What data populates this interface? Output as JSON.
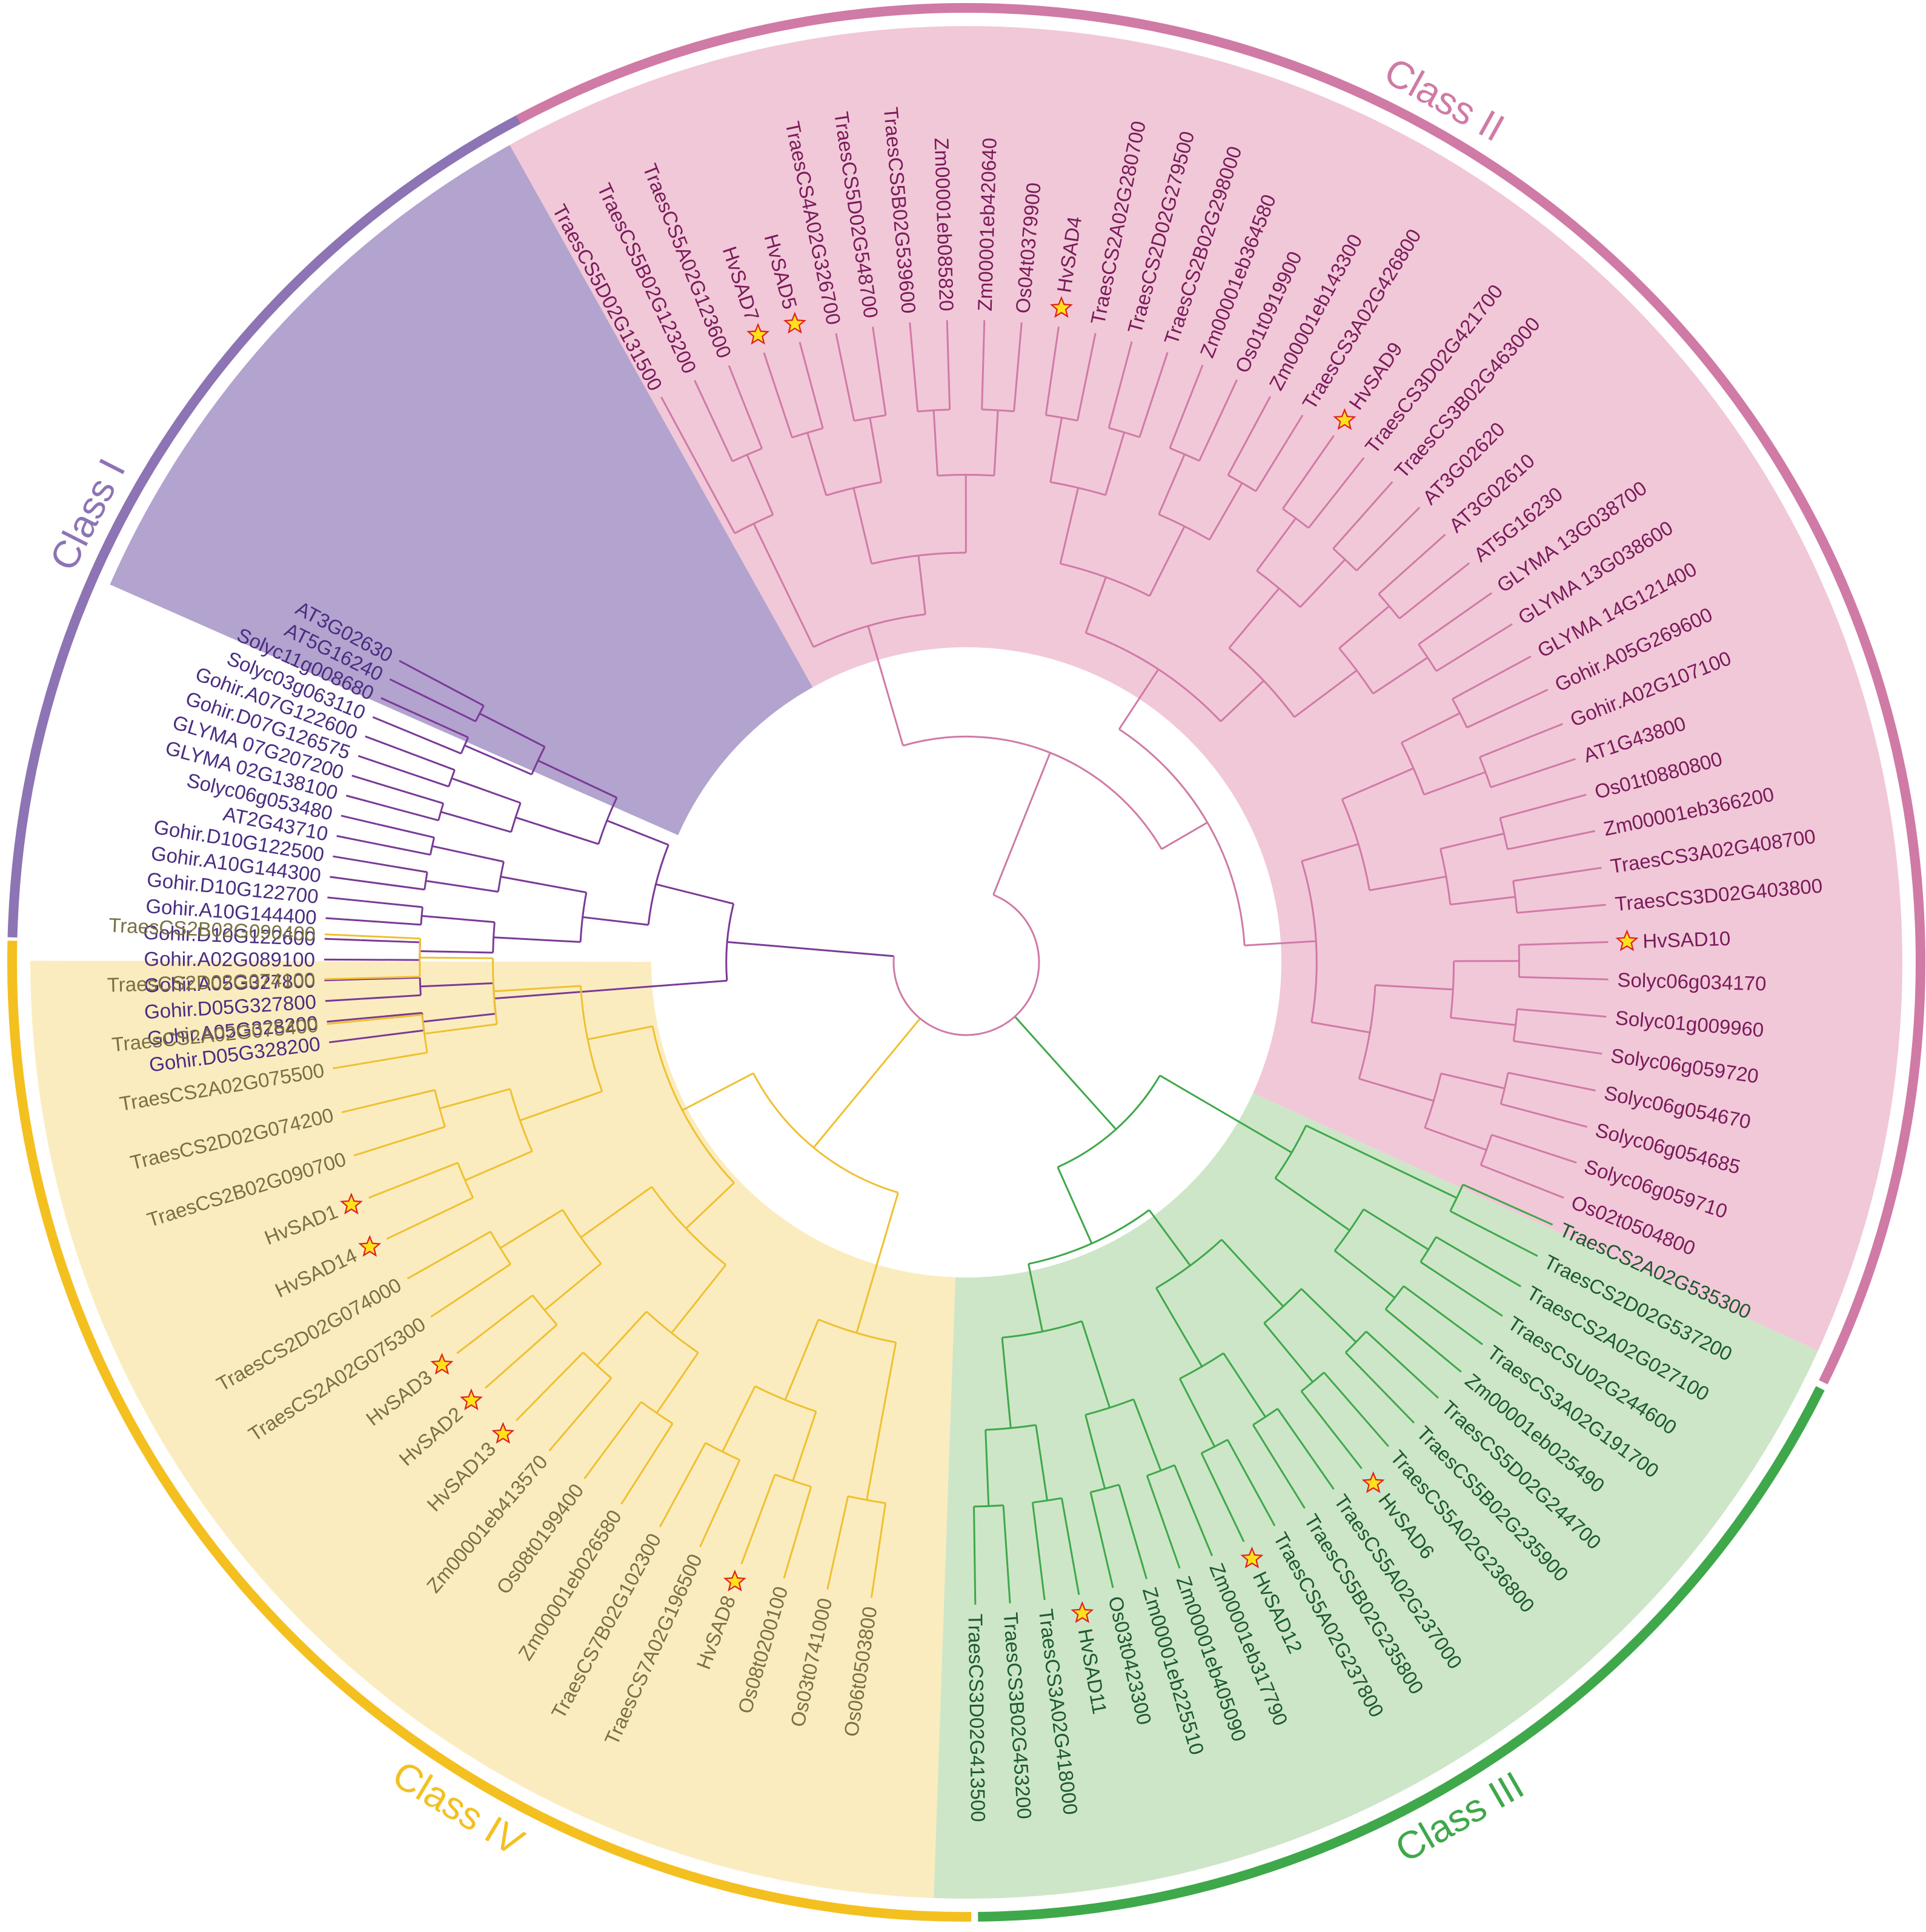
{
  "classes": [
    {
      "id": "I",
      "label": "Class I",
      "color": "#8d74b4",
      "fill": "#b3a3cf",
      "text": "#4a2d80",
      "branch": "#7a3a96",
      "leaves": [
        "AT3G02630",
        "AT5G16240",
        "Solyc11g008680",
        "Solyc03g063110",
        "Gohir.A07G122600",
        "Gohir.D07G126575",
        "GLYMA 07G207200",
        "GLYMA 02G138100",
        "Solyc06g053480",
        "AT2G43710",
        "Gohir.D10G122500",
        "Gohir.A10G144300",
        "Gohir.D10G122700",
        "Gohir.A10G144400",
        "Gohir.D10G122600",
        "Gohir.A02G089100",
        "Gohir.A05G327800",
        "Gohir.D05G327800",
        "Gohir.A05G328200",
        "Gohir.D05G328200"
      ]
    },
    {
      "id": "IV",
      "label": "Class IV",
      "color": "#f4c020",
      "fill": "#fbecc0",
      "text": "#7a7040",
      "branch": "#f0c030",
      "leaves": [
        "TraesCS2B02G090400",
        "TraesCS2D02G074100",
        "TraesCS2A02G075400",
        "TraesCS2A02G075500",
        "TraesCS2D02G074200",
        "TraesCS2B02G090700",
        "HvSAD1",
        "HvSAD14",
        "TraesCS2D02G074000",
        "TraesCS2A02G075300",
        "HvSAD3",
        "HvSAD2",
        "HvSAD13",
        "Zm00001eb413570",
        "Os08t0199400",
        "Zm00001eb026580",
        "TraesCS7B02G102300",
        "TraesCS7A02G196500",
        "HvSAD8",
        "Os08t0200100",
        "Os03t0741000",
        "Os06t0503800"
      ]
    },
    {
      "id": "III",
      "label": "Class III",
      "color": "#3fa84a",
      "fill": "#cde6c8",
      "text": "#1c5a2c",
      "branch": "#3fa84a",
      "leaves": [
        "TraesCS3D02G413500",
        "TraesCS3B02G453200",
        "TraesCS3A02G418000",
        "HvSAD11",
        "Os03t0423300",
        "Zm00001eb225510",
        "Zm00001eb405090",
        "Zm00001eb317790",
        "HvSAD12",
        "TraesCS5A02G237800",
        "TraesCS5B02G235800",
        "TraesCS5A02G237000",
        "HvSAD6",
        "TraesCS5A02G236800",
        "TraesCS5B02G235900",
        "TraesCS5D02G244700",
        "Zm00001eb025490",
        "TraesCS3A02G191700",
        "TraesCSU02G244600",
        "TraesCS2A02G027100",
        "TraesCS2D02G537200",
        "TraesCS2A02G535300"
      ]
    },
    {
      "id": "II",
      "label": "Class II",
      "color": "#d07aa6",
      "fill": "#f1c8d8",
      "text": "#7a1a5a",
      "branch": "#d07aa6",
      "leaves": [
        "Os02t0504800",
        "Solyc06g059710",
        "Solyc06g054685",
        "Solyc06g054670",
        "Solyc06g059720",
        "Solyc01g009960",
        "Solyc06g034170",
        "HvSAD10",
        "TraesCS3D02G403800",
        "TraesCS3A02G408700",
        "Zm00001eb366200",
        "Os01t0880800",
        "AT1G43800",
        "Gohir.A02G107100",
        "Gohir.A05G269600",
        "GLYMA 14G121400",
        "GLYMA 13G038600",
        "GLYMA 13G038700",
        "AT5G16230",
        "AT3G02610",
        "AT3G02620",
        "TraesCS3B02G463000",
        "TraesCS3D02G421700",
        "HvSAD9",
        "TraesCS3A02G426800",
        "Zm00001eb143300",
        "Os01t0919900",
        "Zm00001eb364580",
        "TraesCS2B02G298000",
        "TraesCS2D02G279500",
        "TraesCS2A02G280700",
        "HvSAD4",
        "Os04t0379900",
        "Zm00001eb420640",
        "Zm00001eb085820",
        "TraesCS5B02G539600",
        "TraesCS5D02G548700",
        "TraesCS4A02G326700",
        "HvSAD5",
        "HvSAD7",
        "TraesCS5A02G123600",
        "TraesCS5B02G123200",
        "TraesCS5D02G131500"
      ]
    }
  ],
  "star_leaves": [
    "HvSAD1",
    "HvSAD2",
    "HvSAD3",
    "HvSAD4",
    "HvSAD5",
    "HvSAD6",
    "HvSAD7",
    "HvSAD8",
    "HvSAD9",
    "HvSAD10",
    "HvSAD11",
    "HvSAD12",
    "HvSAD13",
    "HvSAD14"
  ],
  "marker": {
    "name": "star-icon",
    "fill": "#ffe21a",
    "stroke": "#e02020"
  }
}
